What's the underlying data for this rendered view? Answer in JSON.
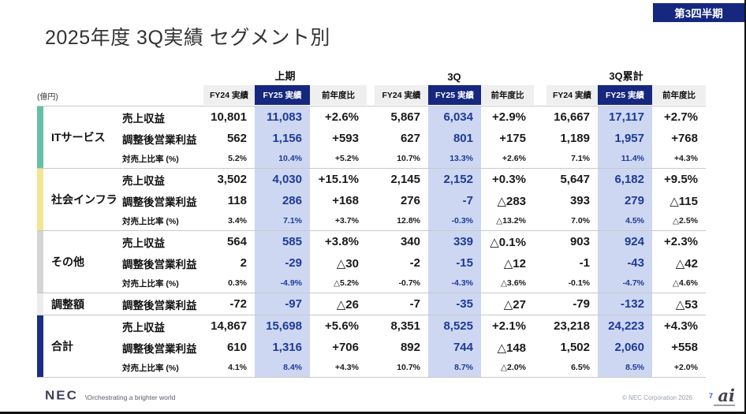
{
  "badge": "第3四半期",
  "title": "2025年度 3Q実績 セグメント別",
  "colors": {
    "accent_navy": "#16277f",
    "fy25_band": "#cdd7f2",
    "fy25_text": "#1e3a96"
  },
  "table": {
    "unit_label": "(億円)",
    "groups": [
      "上期",
      "3Q",
      "3Q累計"
    ],
    "columns": {
      "fy24": "FY24 実績",
      "fy25": "FY25 実績",
      "yoy": "前年度比"
    },
    "metric_labels": {
      "revenue": "売上収益",
      "profit": "調整後営業利益",
      "ratio": "対売上比率 (%)"
    },
    "segments": [
      {
        "name": "ITサービス",
        "color": "#66c0a6",
        "revenue": [
          "10,801",
          "11,083",
          "+2.6%",
          "5,867",
          "6,034",
          "+2.9%",
          "16,667",
          "17,117",
          "+2.7%"
        ],
        "profit": [
          "562",
          "1,156",
          "+593",
          "627",
          "801",
          "+175",
          "1,189",
          "1,957",
          "+768"
        ],
        "ratio": [
          "5.2%",
          "10.4%",
          "+5.2%",
          "10.7%",
          "13.3%",
          "+2.6%",
          "7.1%",
          "11.4%",
          "+4.3%"
        ]
      },
      {
        "name": "社会インフラ",
        "color": "#f4e592",
        "revenue": [
          "3,502",
          "4,030",
          "+15.1%",
          "2,145",
          "2,152",
          "+0.3%",
          "5,647",
          "6,182",
          "+9.5%"
        ],
        "profit": [
          "118",
          "286",
          "+168",
          "276",
          "-7",
          "△283",
          "393",
          "279",
          "△115"
        ],
        "ratio": [
          "3.4%",
          "7.1%",
          "+3.7%",
          "12.8%",
          "-0.3%",
          "△13.2%",
          "7.0%",
          "4.5%",
          "△2.5%"
        ]
      },
      {
        "name": "その他",
        "color": "#d4d4d4",
        "revenue": [
          "564",
          "585",
          "+3.8%",
          "340",
          "339",
          "△0.1%",
          "903",
          "924",
          "+2.3%"
        ],
        "profit": [
          "2",
          "-29",
          "△30",
          "-2",
          "-15",
          "△12",
          "-1",
          "-43",
          "△42"
        ],
        "ratio": [
          "0.3%",
          "-4.9%",
          "△5.2%",
          "-0.7%",
          "-4.3%",
          "△3.6%",
          "-0.1%",
          "-4.7%",
          "△4.6%"
        ]
      },
      {
        "name": "調整額",
        "color": "#ececec",
        "profit": [
          "-72",
          "-97",
          "△26",
          "-7",
          "-35",
          "△27",
          "-79",
          "-132",
          "△53"
        ]
      },
      {
        "name": "合計",
        "color": "#1b2d85",
        "revenue": [
          "14,867",
          "15,698",
          "+5.6%",
          "8,351",
          "8,525",
          "+2.1%",
          "23,218",
          "24,223",
          "+4.3%"
        ],
        "profit": [
          "610",
          "1,316",
          "+706",
          "892",
          "744",
          "△148",
          "1,502",
          "2,060",
          "+558"
        ],
        "ratio": [
          "4.1%",
          "8.4%",
          "+4.3%",
          "10.7%",
          "8.7%",
          "△2.0%",
          "6.5%",
          "8.5%",
          "+2.0%"
        ]
      }
    ]
  },
  "footer": {
    "logo": "NEC",
    "tagline": "\\Orchestrating a brighter world",
    "copyright": "© NEC Corporation 2026",
    "page": "7",
    "ai_logo": "ai"
  }
}
